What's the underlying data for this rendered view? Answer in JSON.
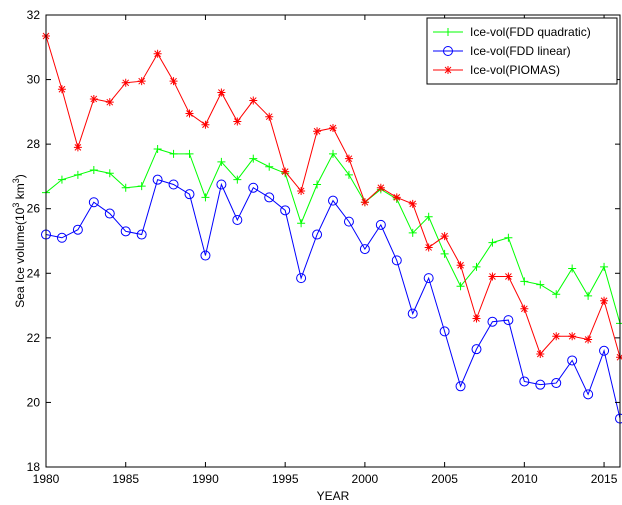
{
  "chart_data": {
    "type": "line",
    "xlabel": "YEAR",
    "ylabel": {
      "prefix": "Sea Ice volume(10",
      "sup": "3",
      "mid": " km",
      "sup2": "3",
      "suffix": ")"
    },
    "xlim": [
      1980,
      2016
    ],
    "ylim": [
      18,
      32
    ],
    "xticks": [
      1980,
      1985,
      1990,
      1995,
      2000,
      2005,
      2010,
      2015
    ],
    "yticks": [
      18,
      20,
      22,
      24,
      26,
      28,
      30,
      32
    ],
    "grid": false,
    "legend_position": "top-right",
    "x": [
      1980,
      1981,
      1982,
      1983,
      1984,
      1985,
      1986,
      1987,
      1988,
      1989,
      1990,
      1991,
      1992,
      1993,
      1994,
      1995,
      1996,
      1997,
      1998,
      1999,
      2000,
      2001,
      2002,
      2003,
      2004,
      2005,
      2006,
      2007,
      2008,
      2009,
      2010,
      2011,
      2012,
      2013,
      2014,
      2015,
      2016
    ],
    "series": [
      {
        "name": "Ice-vol(FDD quadratic)",
        "color": "#00ff00",
        "marker": "plus",
        "values": [
          26.5,
          26.9,
          27.05,
          27.2,
          27.1,
          26.65,
          26.7,
          27.85,
          27.7,
          27.7,
          26.35,
          27.45,
          26.9,
          27.55,
          27.3,
          27.1,
          25.55,
          26.75,
          27.7,
          27.05,
          26.2,
          26.6,
          26.3,
          25.25,
          25.75,
          24.6,
          23.6,
          24.2,
          24.95,
          25.1,
          23.75,
          23.65,
          23.35,
          24.15,
          23.3,
          24.2,
          22.45
        ]
      },
      {
        "name": "Ice-vol(FDD linear)",
        "color": "#0000ff",
        "marker": "circle",
        "values": [
          25.2,
          25.1,
          25.35,
          26.2,
          25.85,
          25.3,
          25.2,
          26.9,
          26.75,
          26.45,
          24.55,
          26.75,
          25.65,
          26.65,
          26.35,
          25.95,
          23.85,
          25.2,
          26.25,
          25.6,
          24.75,
          25.5,
          24.4,
          22.75,
          23.85,
          22.2,
          20.5,
          21.65,
          22.5,
          22.55,
          20.65,
          20.55,
          20.6,
          21.3,
          20.25,
          21.6,
          19.5
        ]
      },
      {
        "name": "Ice-vol(PIOMAS)",
        "color": "#ff0000",
        "marker": "star",
        "values": [
          31.35,
          29.7,
          27.9,
          29.4,
          29.3,
          29.9,
          29.95,
          30.8,
          29.95,
          28.95,
          28.6,
          29.6,
          28.7,
          29.35,
          28.85,
          27.15,
          26.55,
          28.4,
          28.5,
          27.55,
          26.2,
          26.65,
          26.35,
          26.15,
          24.8,
          25.15,
          24.25,
          22.6,
          23.9,
          23.9,
          22.9,
          21.5,
          22.05,
          22.05,
          21.95,
          23.15,
          21.4
        ]
      }
    ]
  }
}
